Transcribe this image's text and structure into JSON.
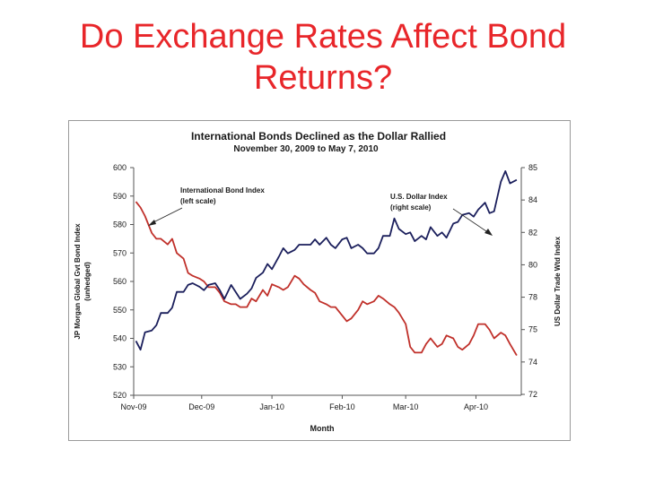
{
  "slide": {
    "title": "Do Exchange Rates Affect Bond Returns?"
  },
  "chart_data": {
    "type": "line",
    "title": "International Bonds Declined as the Dollar Rallied",
    "subtitle": "November 30, 2009 to May 7, 2010",
    "xlabel": "Month",
    "ylabel_left": "JP Morgan Global Gvt Bond Index (unhedged)",
    "ylabel_right": "US Dollar Trade Wtd Index",
    "x_ticks": [
      "Nov-09",
      "Dec-09",
      "Jan-10",
      "Feb-10",
      "Mar-10",
      "Apr-10"
    ],
    "ylim_left": [
      520,
      600
    ],
    "yticks_left": [
      "520",
      "530",
      "540",
      "550",
      "560",
      "570",
      "580",
      "590",
      "600"
    ],
    "ylim_right": [
      72,
      85
    ],
    "yticks_right": [
      "72",
      "74",
      "75",
      "78",
      "80",
      "82",
      "84",
      "85"
    ],
    "grid": false,
    "annotations": [
      {
        "line1": "International Bond Index",
        "line2": "(left scale)"
      },
      {
        "line1": "U.S. Dollar Index",
        "line2": "(right scale)"
      }
    ],
    "series": [
      {
        "axis": "left",
        "color": "#c0302a",
        "x": [
          "2009-11-02",
          "2009-11-04",
          "2009-11-06",
          "2009-11-09",
          "2009-11-11",
          "2009-11-13",
          "2009-11-16",
          "2009-11-18",
          "2009-11-20",
          "2009-11-23",
          "2009-11-25",
          "2009-11-27",
          "2009-11-30",
          "2009-12-02",
          "2009-12-04",
          "2009-12-07",
          "2009-12-09",
          "2009-12-11",
          "2009-12-14",
          "2009-12-16",
          "2009-12-18",
          "2009-12-21",
          "2009-12-23",
          "2009-12-25",
          "2009-12-28",
          "2009-12-30",
          "2010-01-01",
          "2010-01-04",
          "2010-01-06",
          "2010-01-08",
          "2010-01-11",
          "2010-01-13",
          "2010-01-15",
          "2010-01-18",
          "2010-01-20",
          "2010-01-22",
          "2010-01-25",
          "2010-01-27",
          "2010-01-29",
          "2010-02-01",
          "2010-02-03",
          "2010-02-05",
          "2010-02-08",
          "2010-02-10",
          "2010-02-12",
          "2010-02-15",
          "2010-02-17",
          "2010-02-19",
          "2010-02-22",
          "2010-02-24",
          "2010-02-26",
          "2010-03-01",
          "2010-03-03",
          "2010-03-05",
          "2010-03-08",
          "2010-03-10",
          "2010-03-12",
          "2010-03-15",
          "2010-03-17",
          "2010-03-19",
          "2010-03-22",
          "2010-03-24",
          "2010-03-26",
          "2010-03-29",
          "2010-03-31",
          "2010-04-02",
          "2010-04-05",
          "2010-04-07",
          "2010-04-09",
          "2010-04-12",
          "2010-04-14",
          "2010-04-16",
          "2010-04-19"
        ],
        "y": [
          588,
          586,
          583,
          577,
          575,
          575,
          573,
          575,
          570,
          568,
          563,
          562,
          561,
          560,
          558,
          558,
          556,
          553,
          552,
          552,
          551,
          551,
          554,
          553,
          557,
          555,
          559,
          558,
          557,
          558,
          562,
          561,
          559,
          557,
          556,
          553,
          552,
          551,
          551,
          548,
          546,
          547,
          550,
          553,
          552,
          553,
          555,
          554,
          552,
          551,
          549,
          545,
          537,
          535,
          535,
          538,
          540,
          537,
          538,
          541,
          540,
          537,
          536,
          538,
          541,
          545,
          545,
          543,
          540,
          542,
          541,
          538,
          534
        ]
      },
      {
        "axis": "right",
        "color": "#1b1f5c",
        "x": [
          "2009-11-02",
          "2009-11-04",
          "2009-11-06",
          "2009-11-09",
          "2009-11-11",
          "2009-11-13",
          "2009-11-16",
          "2009-11-18",
          "2009-11-20",
          "2009-11-23",
          "2009-11-25",
          "2009-11-27",
          "2009-11-30",
          "2009-12-02",
          "2009-12-04",
          "2009-12-07",
          "2009-12-09",
          "2009-12-11",
          "2009-12-14",
          "2009-12-16",
          "2009-12-18",
          "2009-12-21",
          "2009-12-23",
          "2009-12-25",
          "2009-12-28",
          "2009-12-30",
          "2010-01-01",
          "2010-01-04",
          "2010-01-06",
          "2010-01-08",
          "2010-01-11",
          "2010-01-13",
          "2010-01-15",
          "2010-01-18",
          "2010-01-20",
          "2010-01-22",
          "2010-01-25",
          "2010-01-27",
          "2010-01-29",
          "2010-02-01",
          "2010-02-03",
          "2010-02-05",
          "2010-02-08",
          "2010-02-10",
          "2010-02-12",
          "2010-02-15",
          "2010-02-17",
          "2010-02-19",
          "2010-02-22",
          "2010-02-24",
          "2010-02-26",
          "2010-03-01",
          "2010-03-03",
          "2010-03-05",
          "2010-03-08",
          "2010-03-10",
          "2010-03-12",
          "2010-03-15",
          "2010-03-17",
          "2010-03-19",
          "2010-03-22",
          "2010-03-24",
          "2010-03-26",
          "2010-03-29",
          "2010-03-31",
          "2010-04-02",
          "2010-04-05",
          "2010-04-07",
          "2010-04-09",
          "2010-04-12",
          "2010-04-14",
          "2010-04-16",
          "2010-04-19"
        ],
        "y": [
          75.1,
          74.6,
          75.6,
          75.7,
          76.0,
          76.7,
          76.7,
          77.0,
          77.9,
          77.9,
          78.3,
          78.4,
          78.2,
          78.0,
          78.3,
          78.4,
          78.0,
          77.5,
          78.3,
          77.9,
          77.5,
          77.8,
          78.1,
          78.7,
          79.0,
          79.5,
          79.2,
          79.9,
          80.4,
          80.1,
          80.3,
          80.6,
          80.6,
          80.6,
          80.9,
          80.6,
          81.0,
          80.6,
          80.4,
          80.9,
          81.0,
          80.4,
          80.6,
          80.4,
          80.1,
          80.1,
          80.4,
          81.1,
          81.1,
          82.1,
          81.5,
          81.2,
          81.3,
          80.8,
          81.1,
          80.9,
          81.6,
          81.1,
          81.3,
          81.0,
          81.8,
          81.9,
          82.3,
          82.4,
          82.2,
          82.6,
          83.0,
          82.4,
          82.5,
          84.2,
          84.8,
          84.1,
          84.3
        ]
      }
    ]
  }
}
